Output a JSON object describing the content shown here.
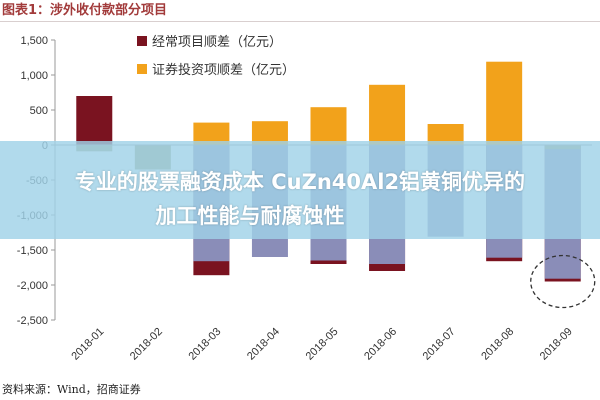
{
  "header": {
    "title": "图表1：涉外收付款部分项目"
  },
  "source_note": "资料来源：Wind，招商证券",
  "banner": {
    "line1": "专业的股票融资成本 CuZn40Al2铝黄铜优异的",
    "line2": "加工性能与耐腐蚀性"
  },
  "colors": {
    "series_1": "#7a1320",
    "series_2": "#f2a21b",
    "annotation_circle": "#333333"
  },
  "chart_data": {
    "type": "bar",
    "title": "",
    "xlabel": "",
    "ylabel": "",
    "ylim": [
      -2500,
      1500
    ],
    "yticks": [
      1500,
      1000,
      500,
      0,
      -500,
      -1000,
      -1500,
      -2000,
      -2500
    ],
    "ytick_labels": [
      "1,500",
      "1,000",
      "500",
      "0",
      "-500",
      "-1,000",
      "-1,500",
      "-2,000",
      "-2,500"
    ],
    "grid": false,
    "legend_position": "top-left",
    "categories": [
      "2018-01",
      "2018-02",
      "2018-03",
      "2018-04",
      "2018-05",
      "2018-06",
      "2018-07",
      "2018-08",
      "2018-09"
    ],
    "series": [
      {
        "name": "经常项目顺差（亿元）",
        "color": "#7a1320",
        "values": [
          700,
          0,
          -1860,
          0,
          -1700,
          -1800,
          0,
          -1660,
          -1950
        ]
      },
      {
        "name": "证券投资项顺差（亿元）",
        "color": "#f2a21b",
        "values": [
          0,
          0,
          320,
          340,
          540,
          860,
          300,
          1190,
          0
        ]
      },
      {
        "name": "",
        "color": "#8a8db8",
        "values": [
          0,
          0,
          -1660,
          -1600,
          -1650,
          -1700,
          -1310,
          -1610,
          -1910
        ]
      },
      {
        "name": "",
        "color": "#9e9e76",
        "values": [
          -90,
          -350,
          0,
          0,
          0,
          0,
          0,
          0,
          -60
        ]
      }
    ],
    "annotation": {
      "type": "dashed-circle",
      "category": "2018-09"
    }
  }
}
